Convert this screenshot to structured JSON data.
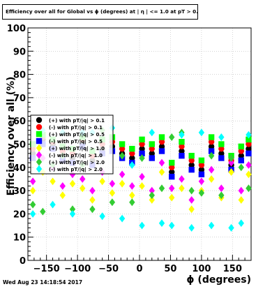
{
  "header": {
    "title": "Efficiency over all for Global vs ϕ (degrees) at | η | <= 1.0 at pT > 0.11"
  },
  "footer": {
    "timestamp": "Wed Aug 23 14:18:54 2017"
  },
  "chart_data": {
    "type": "scatter",
    "title": "Efficiency over all for Global vs ϕ (degrees) at | η | <= 1.0 at pT > 0.11",
    "xlabel": "ϕ (degrees)",
    "ylabel": "Efficiency over all (%)",
    "xlim": [
      -180,
      180
    ],
    "ylim": [
      0,
      100
    ],
    "xticks": [
      -150,
      -100,
      -50,
      0,
      50,
      100,
      150
    ],
    "yticks": [
      0,
      10,
      20,
      30,
      40,
      50,
      60,
      70,
      80,
      90,
      100
    ],
    "grid": true,
    "legend_position": "left-middle",
    "series": [
      {
        "name": "(+) with pT/|q| > 0.1",
        "color": "#000000",
        "marker": "circle",
        "x": [
          -172,
          -156,
          -140,
          -124,
          -108,
          -92,
          -76,
          -60,
          -44,
          -28,
          -12,
          4,
          20,
          36,
          52,
          68,
          84,
          100,
          116,
          132,
          148,
          164,
          176
        ],
        "y": [
          46,
          52,
          50,
          45,
          44,
          51,
          43,
          48,
          49,
          46,
          44,
          48,
          46,
          49,
          38,
          47,
          41,
          39,
          49,
          46,
          41,
          45,
          48
        ]
      },
      {
        "name": "(-) with pT/|q| > 0.1",
        "color": "#ff0000",
        "marker": "circle",
        "x": [
          -172,
          -156,
          -140,
          -124,
          -108,
          -92,
          -76,
          -60,
          -44,
          -28,
          -12,
          4,
          20,
          36,
          52,
          68,
          84,
          100,
          116,
          132,
          148,
          164,
          176
        ],
        "y": [
          48,
          53,
          51,
          47,
          46,
          52,
          45,
          50,
          51,
          48,
          46,
          50,
          48,
          51,
          40,
          49,
          43,
          41,
          51,
          48,
          43,
          47,
          50
        ]
      },
      {
        "name": "(+) with pT/|q| > 0.5",
        "color": "#00ff00",
        "marker": "square",
        "x": [
          -172,
          -156,
          -140,
          -124,
          -108,
          -92,
          -76,
          -60,
          -44,
          -28,
          -12,
          4,
          20,
          36,
          52,
          68,
          84,
          100,
          116,
          132,
          148,
          164,
          176
        ],
        "y": [
          50,
          54,
          52,
          49,
          48,
          53,
          47,
          52,
          53,
          50,
          48,
          52,
          50,
          53,
          42,
          51,
          45,
          43,
          53,
          50,
          45,
          49,
          52
        ]
      },
      {
        "name": "(-) with pT/|q| > 0.5",
        "color": "#0000ff",
        "marker": "square",
        "x": [
          -172,
          -156,
          -140,
          -124,
          -108,
          -92,
          -76,
          -60,
          -44,
          -28,
          -12,
          4,
          20,
          36,
          52,
          68,
          84,
          100,
          116,
          132,
          148,
          164,
          176
        ],
        "y": [
          44,
          50,
          48,
          43,
          42,
          49,
          41,
          46,
          47,
          44,
          42,
          46,
          44,
          47,
          36,
          45,
          39,
          37,
          47,
          44,
          39,
          43,
          46
        ]
      },
      {
        "name": "(+) with pT/|q| > 1.0",
        "color": "#ffff00",
        "marker": "diamond",
        "x": [
          -172,
          -156,
          -140,
          -124,
          -108,
          -92,
          -76,
          -60,
          -44,
          -28,
          -12,
          4,
          20,
          36,
          52,
          68,
          84,
          100,
          116,
          132,
          148,
          164,
          176
        ],
        "y": [
          30,
          38,
          34,
          28,
          33,
          31,
          26,
          34,
          29,
          33,
          28,
          32,
          26,
          38,
          27,
          31,
          22,
          30,
          35,
          27,
          38,
          26,
          37
        ]
      },
      {
        "name": "(-) with pT/|q| > 1.0",
        "color": "#ff00ff",
        "marker": "diamond",
        "x": [
          -172,
          -156,
          -140,
          -124,
          -108,
          -92,
          -76,
          -60,
          -44,
          -28,
          -12,
          4,
          20,
          36,
          52,
          68,
          84,
          100,
          116,
          132,
          148,
          164,
          176
        ],
        "y": [
          34,
          44,
          40,
          32,
          37,
          35,
          30,
          38,
          33,
          37,
          32,
          36,
          30,
          42,
          31,
          35,
          26,
          34,
          39,
          31,
          42,
          30,
          41
        ]
      },
      {
        "name": "(+) with pT/|q| > 2.0",
        "color": "#33cc33",
        "marker": "diamond",
        "x": [
          -172,
          -156,
          -140,
          -124,
          -108,
          -92,
          -76,
          -60,
          -44,
          -28,
          -12,
          4,
          20,
          36,
          52,
          68,
          84,
          100,
          116,
          132,
          148,
          164,
          176
        ],
        "y": [
          24,
          21,
          41,
          45,
          22,
          41,
          22,
          56,
          25,
          45,
          25,
          44,
          28,
          31,
          53,
          55,
          30,
          29,
          45,
          28,
          44,
          40,
          31
        ]
      },
      {
        "name": "(-) with pT/|q| > 2.0",
        "color": "#00ffff",
        "marker": "diamond",
        "x": [
          -172,
          -156,
          -140,
          -124,
          -108,
          -92,
          -76,
          -60,
          -44,
          -28,
          -12,
          4,
          20,
          36,
          52,
          68,
          84,
          100,
          116,
          132,
          148,
          164,
          176
        ],
        "y": [
          20,
          56,
          24,
          55,
          20,
          55,
          55,
          19,
          57,
          18,
          41,
          15,
          55,
          16,
          15,
          54,
          14,
          55,
          15,
          53,
          14,
          16,
          54
        ]
      }
    ]
  }
}
